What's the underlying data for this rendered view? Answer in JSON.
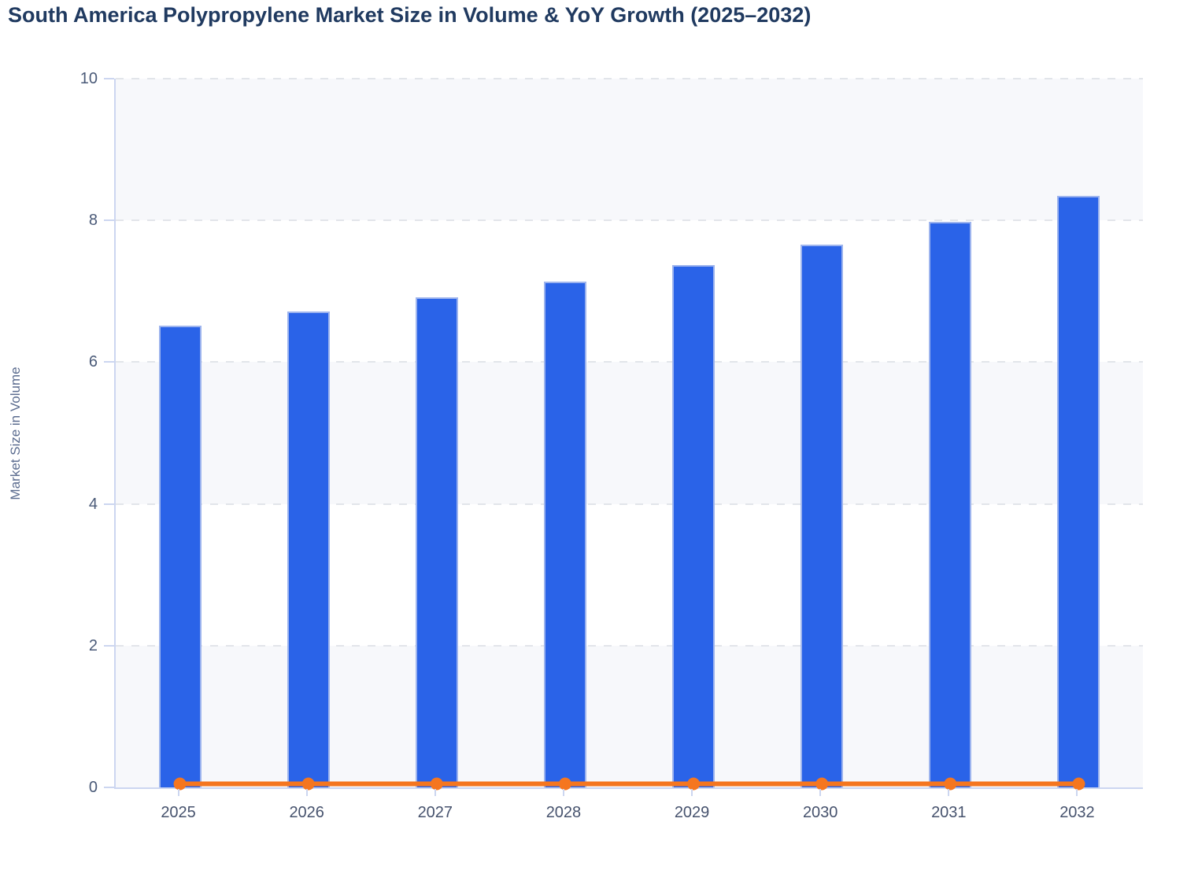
{
  "chart_data": {
    "type": "bar",
    "title": "South America Polypropylene Market Size in Volume & YoY Growth (2025–2032)",
    "xlabel": "",
    "ylabel": "Market Size in Volume",
    "categories": [
      "2025",
      "2026",
      "2027",
      "2028",
      "2029",
      "2030",
      "2031",
      "2032"
    ],
    "series": [
      {
        "name": "Market Size in Volume",
        "type": "bar",
        "color": "#2a63e8",
        "border_color": "#9db4ee",
        "values": [
          6.52,
          6.71,
          6.91,
          7.14,
          7.37,
          7.66,
          7.98,
          8.35
        ]
      },
      {
        "name": "YoY Growth",
        "type": "line",
        "color": "#f5761f",
        "values": [
          0.05,
          0.05,
          0.05,
          0.05,
          0.05,
          0.05,
          0.05,
          0.05
        ]
      }
    ],
    "ylim": [
      0,
      10
    ],
    "yticks": [
      0,
      2,
      4,
      6,
      8,
      10
    ],
    "background_bands": [
      [
        0,
        2
      ],
      [
        4,
        6
      ],
      [
        8,
        10
      ]
    ],
    "grid": "horizontal-dashed",
    "legend": "none",
    "colors": {
      "band": "#f7f8fb",
      "grid": "#e2e5ea",
      "axis": "#ccd6f0",
      "title": "#203a60",
      "y_tick_label": "#4a5a78",
      "x_tick_label": "#46526d",
      "y_axis_title": "#5a6b8e"
    }
  }
}
